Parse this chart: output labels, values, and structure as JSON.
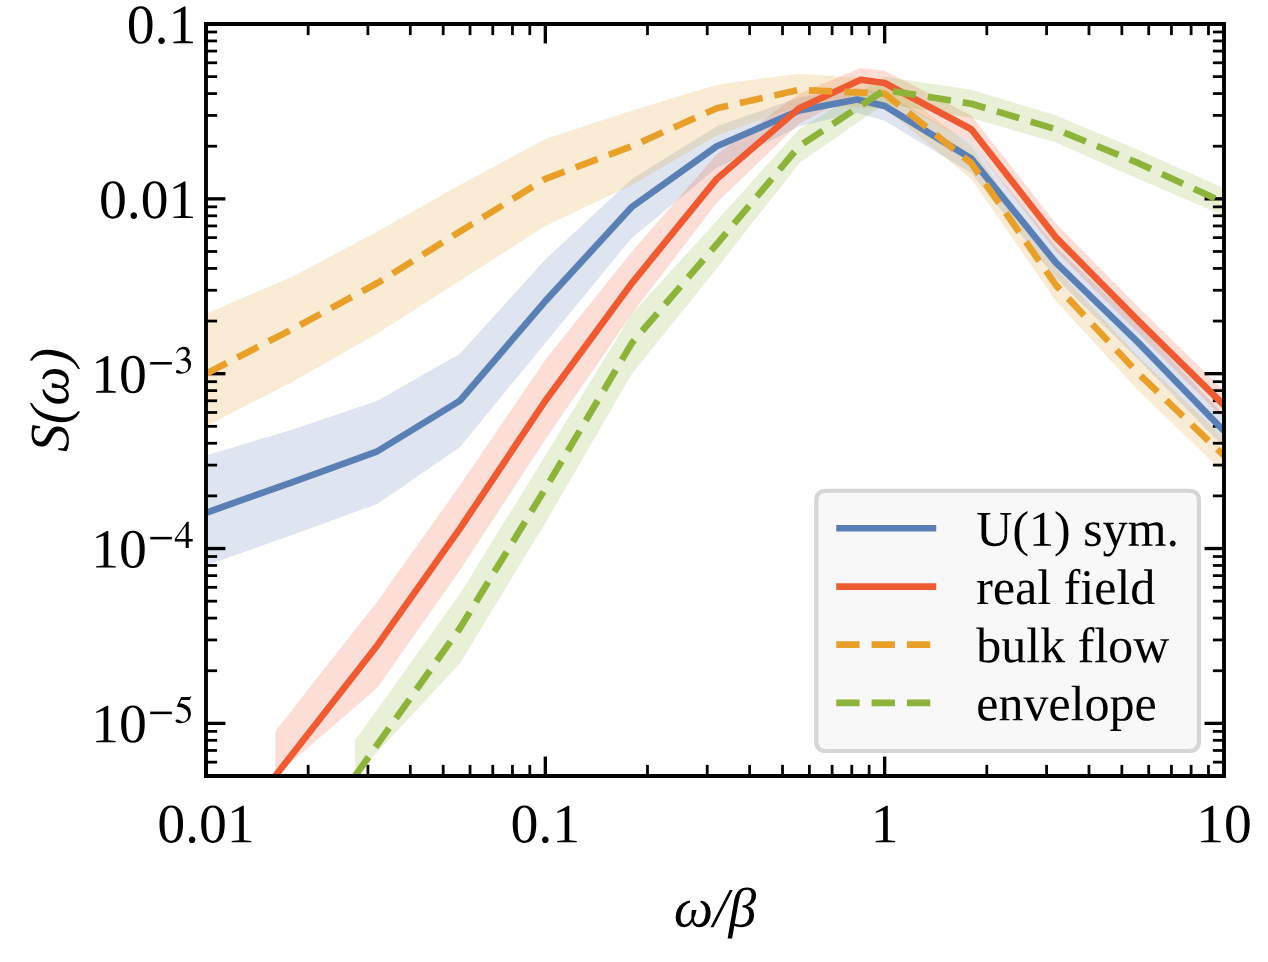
{
  "chart_data": {
    "type": "line",
    "xlabel": "ω/β",
    "ylabel": "S(ω)",
    "log": "xy",
    "grid": false,
    "legend": "bottom right",
    "xlim": [
      0.01,
      10
    ],
    "xticks": [
      0.01,
      0.1,
      1,
      10
    ],
    "ylim": [
      5e-06,
      0.1
    ],
    "yticks": [
      {
        "value": 1e-05,
        "label": "10$^{−5}$"
      },
      {
        "value": 0.0001,
        "label": "10$^{−4}$"
      },
      {
        "value": 0.001,
        "label": "10$^{−3}$"
      },
      0.01,
      0.1
    ],
    "series": [
      {
        "name": "U(1) sym.",
        "color": "#5a7fb5",
        "line_style": "solid",
        "x": [
          0.01,
          0.018,
          0.032,
          0.056,
          0.1,
          0.18,
          0.32,
          0.56,
          0.83,
          1,
          1.8,
          3.2,
          5.6,
          10
        ],
        "values": [
          0.00016,
          0.00024,
          0.00036,
          0.0007,
          0.0026,
          0.009,
          0.02,
          0.032,
          0.037,
          0.034,
          0.017,
          0.0043,
          0.0015,
          0.00047
        ],
        "lower": [
          8e-05,
          0.00012,
          0.00018,
          0.00038,
          0.0015,
          0.006,
          0.015,
          0.026,
          0.031,
          0.028,
          0.014,
          0.0035,
          0.0012,
          0.00038
        ],
        "upper": [
          0.00034,
          0.00048,
          0.0007,
          0.0013,
          0.0045,
          0.013,
          0.026,
          0.038,
          0.043,
          0.04,
          0.021,
          0.0053,
          0.0019,
          0.00058
        ]
      },
      {
        "name": "real field",
        "color": "#ee5a32",
        "line_style": "solid",
        "x": [
          0.016,
          0.032,
          0.056,
          0.1,
          0.18,
          0.32,
          0.56,
          0.85,
          1,
          1.8,
          3.2,
          5.6,
          10
        ],
        "values": [
          5e-06,
          2.8e-05,
          0.00013,
          0.0007,
          0.0033,
          0.013,
          0.033,
          0.048,
          0.046,
          0.025,
          0.006,
          0.002,
          0.00066
        ],
        "lower": [
          5e-06,
          1.6e-05,
          7.5e-05,
          0.00042,
          0.0022,
          0.0095,
          0.027,
          0.041,
          0.039,
          0.021,
          0.005,
          0.0017,
          0.00055
        ],
        "upper": [
          9e-06,
          5e-05,
          0.00023,
          0.0012,
          0.005,
          0.018,
          0.04,
          0.056,
          0.054,
          0.03,
          0.0072,
          0.0024,
          0.0008
        ]
      },
      {
        "name": "bulk flow",
        "color": "#e8a02a",
        "line_style": "dashed",
        "x": [
          0.01,
          0.018,
          0.032,
          0.056,
          0.1,
          0.18,
          0.32,
          0.56,
          1,
          1.8,
          3.2,
          5.6,
          10
        ],
        "values": [
          0.001,
          0.0018,
          0.0033,
          0.0065,
          0.013,
          0.02,
          0.033,
          0.042,
          0.04,
          0.016,
          0.0032,
          0.001,
          0.00034
        ],
        "lower": [
          0.0005,
          0.0009,
          0.0017,
          0.0034,
          0.007,
          0.012,
          0.023,
          0.034,
          0.033,
          0.013,
          0.0026,
          0.0008,
          0.00027
        ],
        "upper": [
          0.0022,
          0.0036,
          0.0065,
          0.012,
          0.022,
          0.032,
          0.045,
          0.052,
          0.048,
          0.02,
          0.004,
          0.00125,
          0.00043
        ]
      },
      {
        "name": "envelope",
        "color": "#8db33a",
        "line_style": "dashed",
        "x": [
          0.0275,
          0.056,
          0.1,
          0.18,
          0.32,
          0.56,
          1,
          1.8,
          3.2,
          5.6,
          10
        ],
        "values": [
          5e-06,
          3.5e-05,
          0.00022,
          0.0015,
          0.0055,
          0.02,
          0.042,
          0.035,
          0.025,
          0.016,
          0.0095
        ],
        "lower": [
          5e-06,
          2.2e-05,
          0.00014,
          0.001,
          0.004,
          0.016,
          0.035,
          0.029,
          0.021,
          0.013,
          0.008
        ],
        "upper": [
          8e-06,
          5.5e-05,
          0.00034,
          0.0022,
          0.0075,
          0.025,
          0.05,
          0.042,
          0.03,
          0.019,
          0.0115
        ]
      }
    ]
  }
}
